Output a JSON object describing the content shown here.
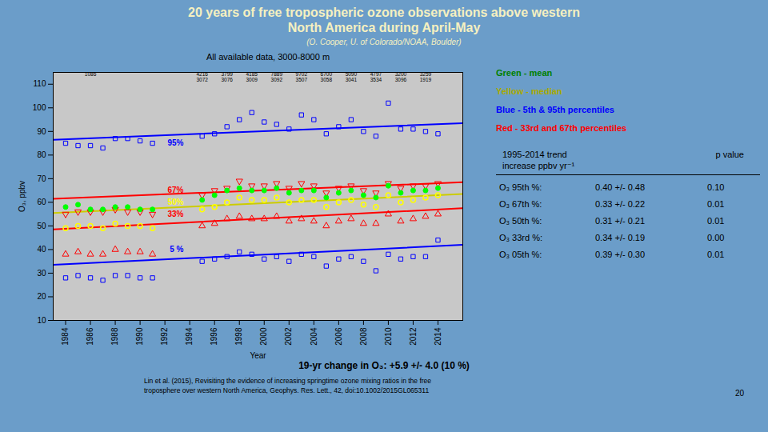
{
  "chart_data": {
    "type": "scatter",
    "title": "20 years of free tropospheric ozone observations above western\nNorth America during April-May",
    "subtitle": "(O. Cooper,  U. of Colorado/NOAA, Boulder)",
    "plot_title": "All available data, 3000-8000 m",
    "xlabel": "Year",
    "ylabel": "O₃, ppbv",
    "xlim": [
      1983,
      2016
    ],
    "ylim": [
      10,
      115
    ],
    "xticks": [
      1984,
      1986,
      1988,
      1990,
      1992,
      1994,
      1996,
      1998,
      2000,
      2002,
      2004,
      2006,
      2008,
      2010,
      2012,
      2014
    ],
    "yticks": [
      10,
      20,
      30,
      40,
      50,
      60,
      70,
      80,
      90,
      100,
      110
    ],
    "grid": false,
    "x": [
      1984,
      1985,
      1986,
      1987,
      1988,
      1989,
      1990,
      1991,
      1995,
      1996,
      1997,
      1998,
      1999,
      2000,
      2001,
      2002,
      2003,
      2004,
      2005,
      2006,
      2007,
      2008,
      2009,
      2010,
      2011,
      2012,
      2013,
      2014
    ],
    "series": [
      {
        "type": "scatter",
        "marker": "open-square",
        "color": "blue",
        "values": [
          85,
          84,
          84,
          83,
          87,
          87,
          86,
          85,
          88,
          89,
          92,
          95,
          98,
          94,
          93,
          91,
          97,
          95,
          89,
          92,
          95,
          90,
          88,
          102,
          91,
          91,
          90,
          89
        ]
      },
      {
        "type": "scatter",
        "marker": "open-square",
        "color": "blue",
        "values": [
          28,
          29,
          28,
          27,
          29,
          29,
          28,
          28,
          35,
          36,
          37,
          39,
          38,
          36,
          37,
          35,
          38,
          37,
          33,
          36,
          37,
          35,
          31,
          38,
          36,
          37,
          37,
          44
        ]
      },
      {
        "type": "scatter",
        "marker": "open-triangle-down",
        "color": "red",
        "values": [
          55,
          56,
          56,
          56,
          57,
          56,
          56,
          55,
          63,
          65,
          66,
          69,
          67,
          67,
          68,
          66,
          68,
          67,
          64,
          66,
          67,
          65,
          64,
          68,
          66,
          67,
          67,
          68
        ]
      },
      {
        "type": "scatter",
        "marker": "open-triangle-up",
        "color": "red",
        "values": [
          38,
          39,
          38,
          38,
          40,
          39,
          39,
          38,
          50,
          51,
          53,
          54,
          53,
          53,
          54,
          52,
          53,
          52,
          50,
          52,
          53,
          51,
          51,
          55,
          52,
          53,
          54,
          55
        ]
      },
      {
        "type": "scatter",
        "marker": "open-circle",
        "color": "yellow",
        "values": [
          49,
          50,
          50,
          49,
          51,
          50,
          50,
          49,
          57,
          58,
          60,
          62,
          61,
          61,
          62,
          60,
          61,
          61,
          58,
          60,
          61,
          59,
          58,
          63,
          60,
          61,
          62,
          63
        ]
      },
      {
        "type": "scatter",
        "marker": "filled-circle",
        "color": "lime",
        "values": [
          58,
          59,
          57,
          57,
          58,
          58,
          57,
          57,
          61,
          63,
          65,
          66,
          65,
          65,
          66,
          64,
          65,
          65,
          62,
          64,
          65,
          63,
          62,
          67,
          64,
          65,
          65,
          66
        ]
      },
      {
        "type": "line",
        "color": "blue",
        "x": [
          1983,
          2016
        ],
        "values": [
          86.5,
          93.5
        ]
      },
      {
        "type": "line",
        "color": "blue",
        "x": [
          1983,
          2016
        ],
        "values": [
          33.5,
          42.0
        ]
      },
      {
        "type": "line",
        "color": "red",
        "x": [
          1983,
          2016
        ],
        "values": [
          61.5,
          68.5
        ]
      },
      {
        "type": "line",
        "color": "red",
        "x": [
          1983,
          2016
        ],
        "values": [
          48.5,
          57.5
        ]
      },
      {
        "type": "line",
        "color": "#cccc00",
        "x": [
          1983,
          2016
        ],
        "values": [
          55.5,
          63.5
        ]
      }
    ],
    "annotations": [
      {
        "text": "95%",
        "x": 1993.5,
        "y": 84,
        "color": "blue"
      },
      {
        "text": "67%",
        "x": 1993.5,
        "y": 64,
        "color": "red"
      },
      {
        "text": "50%",
        "x": 1993.5,
        "y": 59,
        "color": "yellow"
      },
      {
        "text": "33%",
        "x": 1993.5,
        "y": 54,
        "color": "red"
      },
      {
        "text": "5 %",
        "x": 1993.5,
        "y": 39,
        "color": "blue"
      }
    ],
    "sample_counts": [
      {
        "x": 1995,
        "y": 113.5,
        "value": 4216
      },
      {
        "x": 1995,
        "y": 111.0,
        "value": 3072
      },
      {
        "x": 1997,
        "y": 113.5,
        "value": 3799
      },
      {
        "x": 1997,
        "y": 111.0,
        "value": 3076
      },
      {
        "x": 1999,
        "y": 113.5,
        "value": 4185
      },
      {
        "x": 1999,
        "y": 111.0,
        "value": 3009
      },
      {
        "x": 2001,
        "y": 113.5,
        "value": 7889
      },
      {
        "x": 2001,
        "y": 111.0,
        "value": 3092
      },
      {
        "x": 2003,
        "y": 113.5,
        "value": 9702
      },
      {
        "x": 2003,
        "y": 111.0,
        "value": 3507
      },
      {
        "x": 2005,
        "y": 113.5,
        "value": 6700
      },
      {
        "x": 2005,
        "y": 111.0,
        "value": 3058
      },
      {
        "x": 2007,
        "y": 113.5,
        "value": 5090
      },
      {
        "x": 2007,
        "y": 111.0,
        "value": 3041
      },
      {
        "x": 2009,
        "y": 113.5,
        "value": 4797
      },
      {
        "x": 2009,
        "y": 111.0,
        "value": 3534
      },
      {
        "x": 2011,
        "y": 113.5,
        "value": 3200
      },
      {
        "x": 2011,
        "y": 111.0,
        "value": 3096
      },
      {
        "x": 2013,
        "y": 113.5,
        "value": 3259
      },
      {
        "x": 2013,
        "y": 111.0,
        "value": 1919
      },
      {
        "x": 1986,
        "y": 113.5,
        "value": 1086
      }
    ],
    "legend_entries": [
      {
        "text": "Green - mean",
        "color": "green"
      },
      {
        "text": "Yellow - median",
        "color": "#aaaa00"
      },
      {
        "text": "Blue - 5th & 95th percentiles",
        "color": "blue"
      },
      {
        "text": "Red - 33rd and 67th percentiles",
        "color": "red"
      }
    ],
    "table": {
      "title": "1995-2014 trend\nincrease ppbv yr⁻¹",
      "header": "p value",
      "rows": [
        [
          "O₃ 95th %:",
          "0.40 +/- 0.48",
          "0.10"
        ],
        [
          "O₃ 67th %:",
          "0.33 +/- 0.22",
          "0.01"
        ],
        [
          "O₃ 50th %:",
          "0.31 +/- 0.21",
          "0.01"
        ],
        [
          "O₃ 33rd %:",
          "0.34 +/- 0.19",
          "0.00"
        ],
        [
          "O₃ 05th %:",
          "0.39 +/- 0.30",
          "0.01"
        ]
      ]
    },
    "footer": "19-yr change in O₃:  +5.9 +/-  4.0  (10 %)",
    "reference": "Lin et al. (2015), Revisiting the evidence of increasing springtime ozone mixing ratios in the free\ntroposphere over western North America, Geophys. Res. Lett., 42, doi:10.1002/2015GL065311",
    "page_number": "20"
  }
}
